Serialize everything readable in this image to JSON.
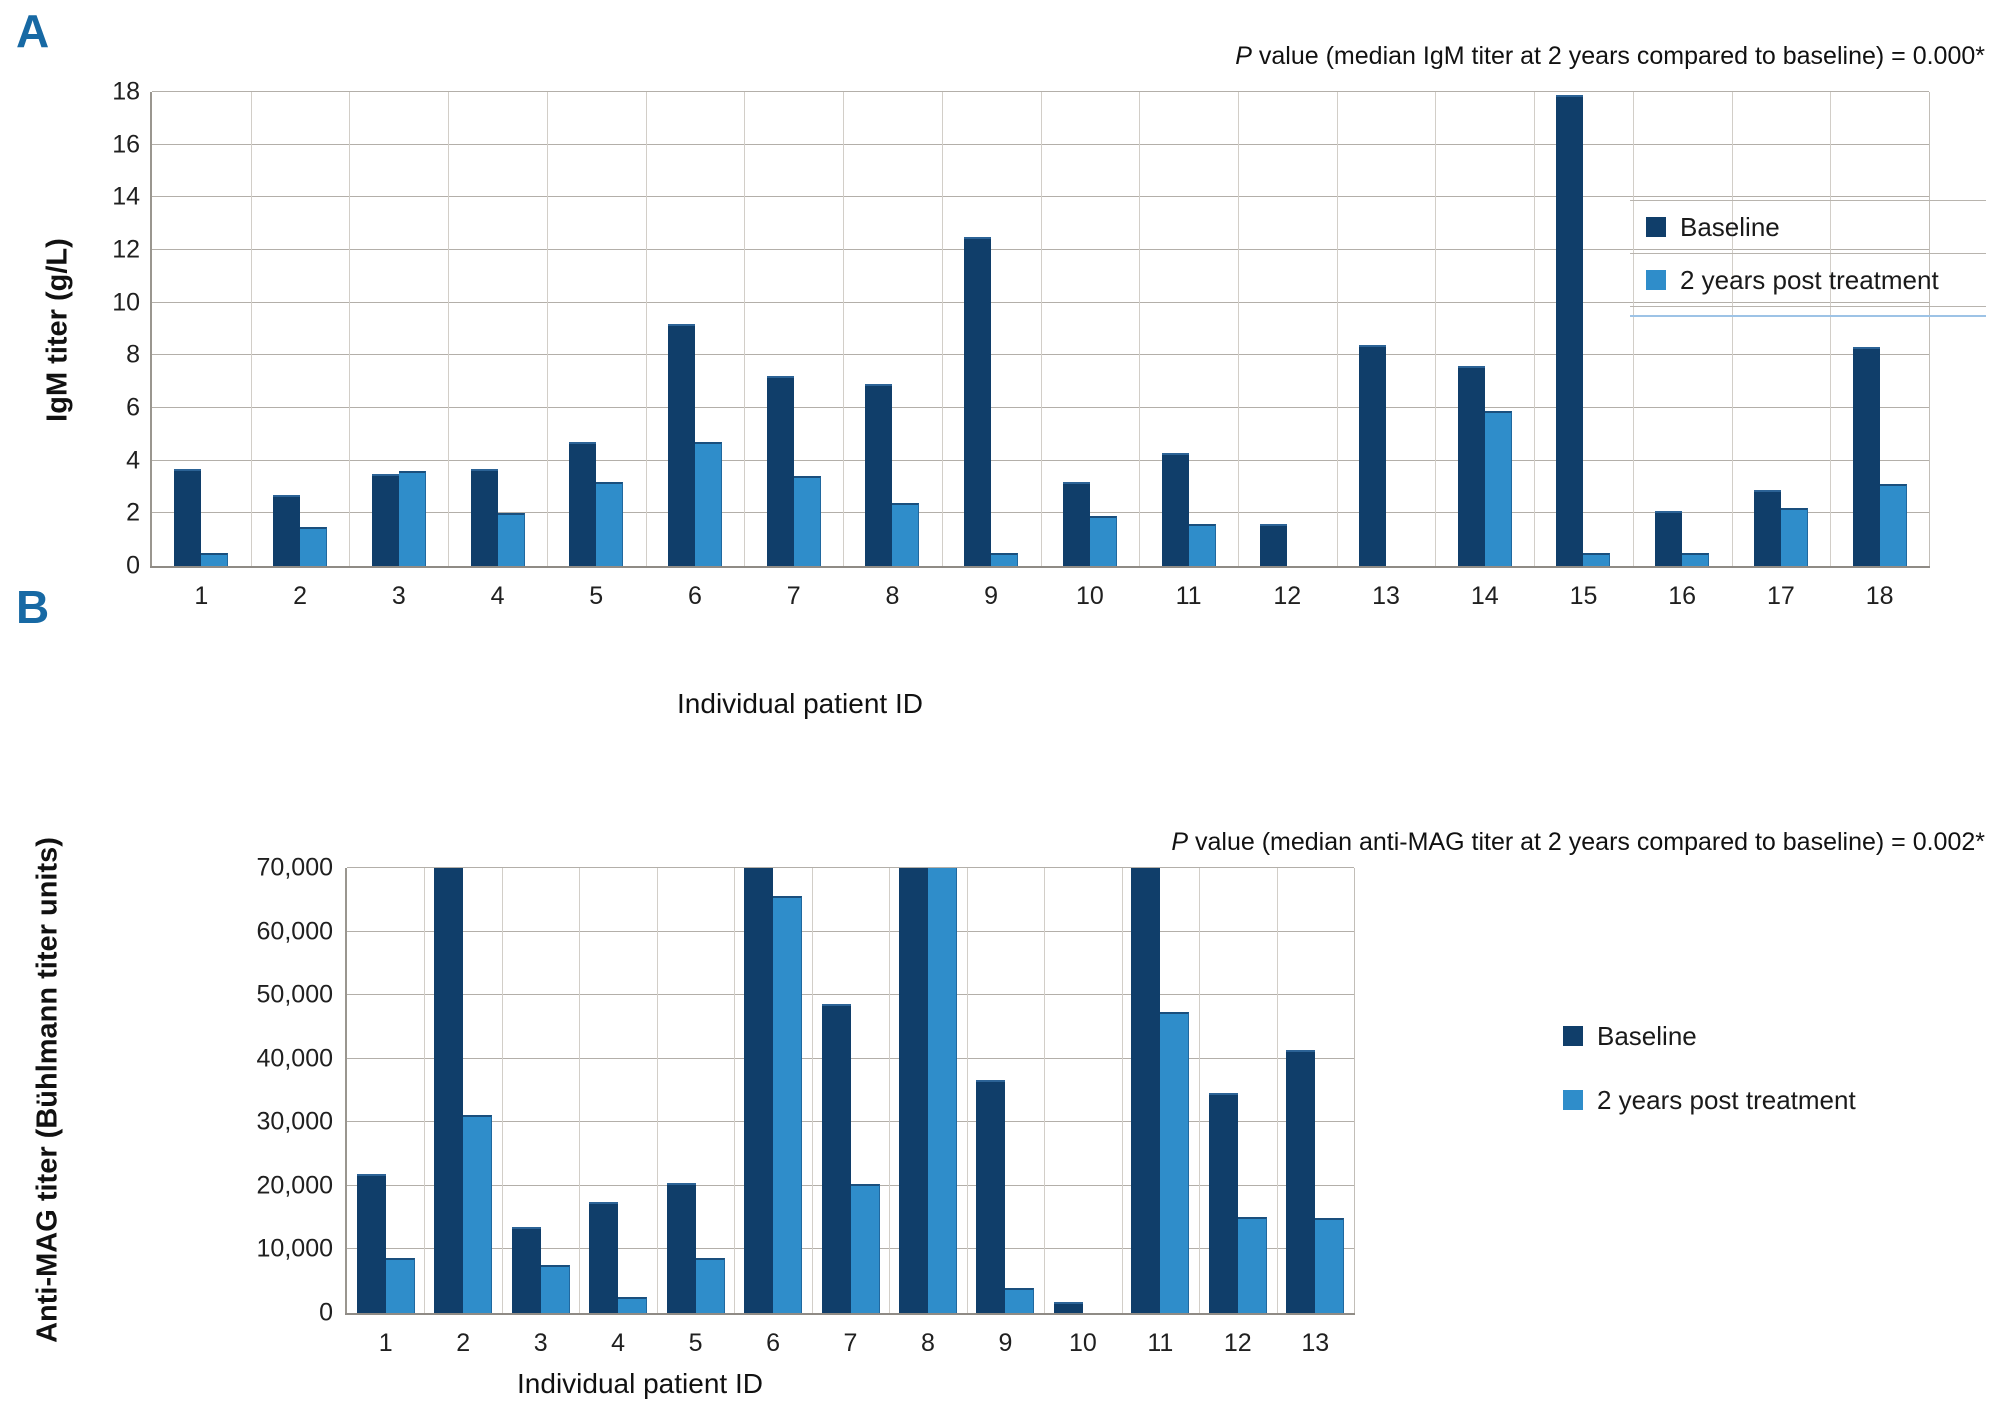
{
  "legend": {
    "baseline": "Baseline",
    "post": "2 years post treatment"
  },
  "colors": {
    "baseline_bar": "#103E6A",
    "post_bar": "#2F8DCA",
    "panel_letter": "#1769A4",
    "gridline": "#b3afa9",
    "legend_underline": "#9DC3E6"
  },
  "chart_data": [
    {
      "type": "bar",
      "panel": "A",
      "panel_label": "A",
      "title": "P value (median IgM titer at 2 years compared to baseline) = 0.000*",
      "title_prefix": "P",
      "title_suffix": " value (median IgM titer at 2 years compared to baseline) = 0.000*",
      "xlabel": "Individual patient ID",
      "ylabel": "IgM titer (g/L)",
      "ylim": [
        0,
        18
      ],
      "ytick_step": 2,
      "yticks": [
        "0",
        "2",
        "4",
        "6",
        "8",
        "10",
        "12",
        "14",
        "16",
        "18"
      ],
      "grid": true,
      "legend_position": "right-inside",
      "categories": [
        "1",
        "2",
        "3",
        "4",
        "5",
        "6",
        "7",
        "8",
        "9",
        "10",
        "11",
        "12",
        "13",
        "14",
        "15",
        "16",
        "17",
        "18"
      ],
      "series": [
        {
          "name": "Baseline",
          "values": [
            3.7,
            2.7,
            3.5,
            3.7,
            4.7,
            9.2,
            7.2,
            6.9,
            12.5,
            3.2,
            4.3,
            1.6,
            8.4,
            7.6,
            17.9,
            2.1,
            2.9,
            8.3
          ]
        },
        {
          "name": "2 years post treatment",
          "values": [
            0.5,
            1.5,
            3.6,
            2.0,
            3.2,
            4.7,
            3.4,
            2.4,
            0.5,
            1.9,
            1.6,
            null,
            null,
            5.9,
            0.5,
            0.5,
            2.2,
            3.1
          ]
        }
      ]
    },
    {
      "type": "bar",
      "panel": "B",
      "panel_label": "B",
      "title": "P value (median anti-MAG titer at 2 years compared to baseline) = 0.002*",
      "title_prefix": "P",
      "title_suffix": " value (median anti-MAG titer at 2 years compared to baseline) = 0.002*",
      "xlabel": "Individual patient ID",
      "ylabel": "Anti-MAG titer (Bühlmann titer units)",
      "ylim": [
        0,
        70000
      ],
      "ytick_step": 10000,
      "yticks": [
        "0",
        "10,000",
        "20,000",
        "30,000",
        "40,000",
        "50,000",
        "60,000",
        "70,000"
      ],
      "grid": true,
      "legend_position": "right-outside",
      "categories": [
        "1",
        "2",
        "3",
        "4",
        "5",
        "6",
        "7",
        "8",
        "9",
        "10",
        "11",
        "12",
        "13"
      ],
      "series": [
        {
          "name": "Baseline",
          "values": [
            21800,
            70000,
            13500,
            17500,
            20400,
            70000,
            48600,
            70000,
            36600,
            1800,
            70000,
            34600,
            41400
          ]
        },
        {
          "name": "2 years post treatment",
          "values": [
            8600,
            31100,
            7600,
            2500,
            8600,
            65600,
            20300,
            70000,
            3900,
            null,
            47300,
            15100,
            14900
          ]
        }
      ]
    }
  ]
}
